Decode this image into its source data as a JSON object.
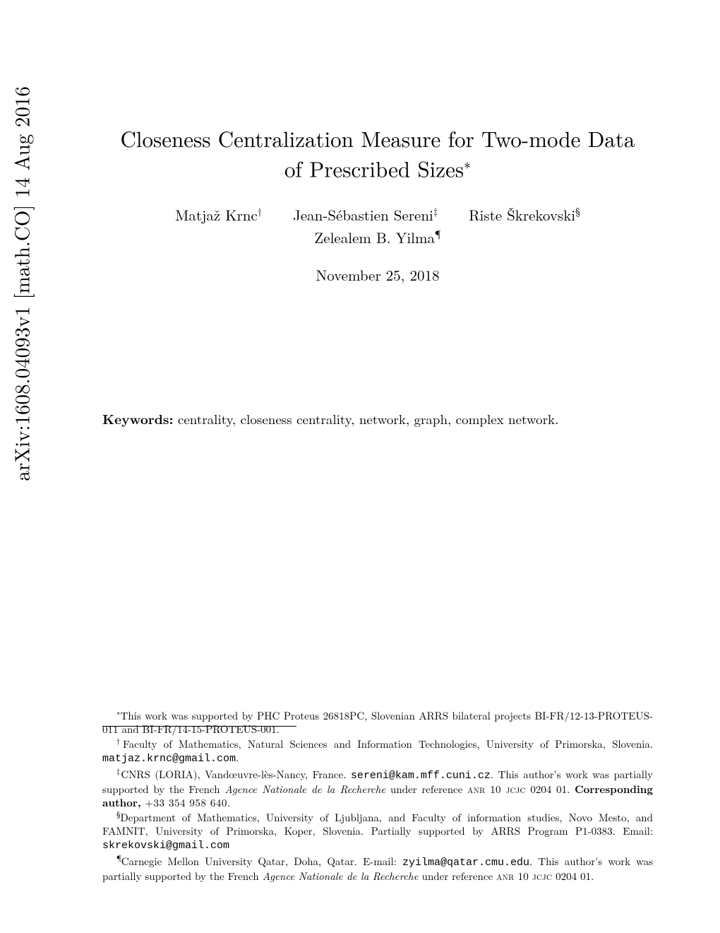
{
  "arxiv": "arXiv:1608.04093v1  [math.CO]  14 Aug 2016",
  "title": {
    "line1": "Closeness Centralization Measure for Two-mode Data",
    "line2": "of Prescribed Sizes",
    "mark": "∗"
  },
  "authors": {
    "a1": "Matjaž Krnc",
    "m1": "†",
    "a2": "Jean-Sébastien Sereni",
    "m2": "‡",
    "a3": "Riste Škrekovski",
    "m3": "§",
    "a4": "Zelealem B. Yilma",
    "m4": "¶"
  },
  "date": "November 25, 2018",
  "keywords_label": "Keywords:",
  "keywords_text": " centrality, closeness centrality, network, graph, complex network.",
  "fn": {
    "star": {
      "mark": "∗",
      "text": "This work was supported by PHC Proteus 26818PC, Slovenian ARRS bilateral projects BI-FR/12-13-PROTEUS-011 and BI-FR/14-15-PROTEUS-001."
    },
    "dagger": {
      "mark": "†",
      "t1": "Faculty of Mathematics, Natural Sciences and Information Technologies, University of Primorska, Slovenia. ",
      "email": "matjaz.krnc@gmail.com",
      "t2": "."
    },
    "ddagger": {
      "mark": "‡",
      "t1": "CNRS (LORIA), Vandœuvre-lès-Nancy, France. ",
      "email": "sereni@kam.mff.cuni.cz",
      "t2": ". This author's work was partially supported by the French ",
      "it": "Agence Nationale de la Recherche",
      "t3": " under reference ",
      "sc": "anr 10 jcjc",
      "t4": " 0204 01. ",
      "corr": "Corresponding author,",
      "phone": " +33 354 958 640."
    },
    "section": {
      "mark": "§",
      "t1": "Department of Mathematics, University of Ljubljana, and Faculty of information studies, Novo Mesto, and FAMNIT, University of Primorska, Koper, Slovenia. Partially supported by ARRS Program P1-0383. Email: ",
      "email": "skrekovski@gmail.com"
    },
    "para": {
      "mark": "¶",
      "t1": "Carnegie Mellon University Qatar, Doha, Qatar. E-mail: ",
      "email": "zyilma@qatar.cmu.edu",
      "t2": ". This author's work was partially supported by the French ",
      "it": "Agence Nationale de la Recherche",
      "t3": " under reference ",
      "sc": "anr 10 jcjc",
      "t4": " 0204 01."
    }
  }
}
